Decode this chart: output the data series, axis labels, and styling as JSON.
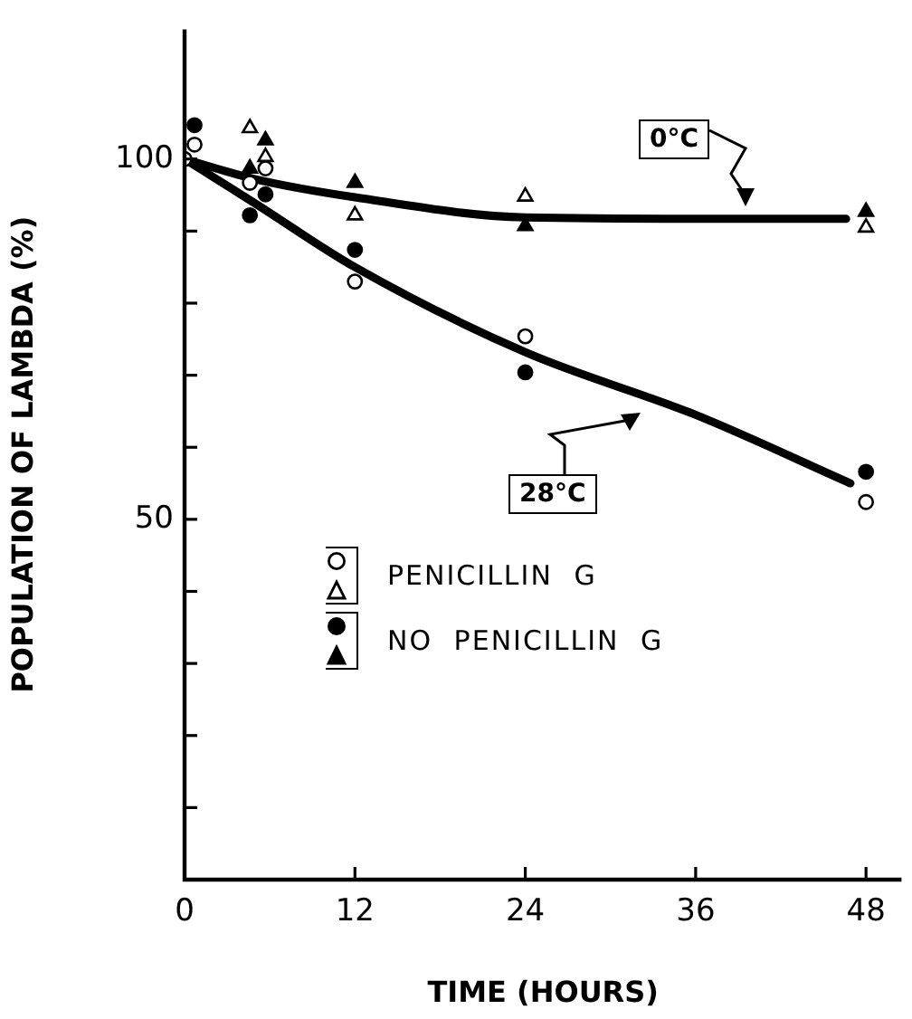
{
  "chart_data": {
    "type": "scatter",
    "xlabel": "TIME (HOURS)",
    "ylabel": "POPULATION OF LAMBDA (%)",
    "xlim": [
      0,
      50.5
    ],
    "ylim": [
      0,
      118
    ],
    "xticks": [
      0,
      12,
      24,
      36,
      48
    ],
    "yticks": [
      {
        "value": 0,
        "label": null
      },
      {
        "value": 10,
        "label": null
      },
      {
        "value": 20,
        "label": null
      },
      {
        "value": 30,
        "label": null
      },
      {
        "value": 40,
        "label": null
      },
      50,
      {
        "value": 60,
        "label": null
      },
      {
        "value": 70,
        "label": null
      },
      {
        "value": 80,
        "label": null
      },
      {
        "value": 90,
        "label": null
      },
      100
    ],
    "grid": false,
    "legend": "bottom",
    "line_style": "solid",
    "series": [
      {
        "name": "PENICILLIN G",
        "marker": "circle-open",
        "color": "#000000",
        "x": [
          0,
          0.7,
          4.6,
          5.7,
          12,
          24,
          48
        ],
        "values": [
          100,
          102,
          96.7,
          98.7,
          83,
          75.4,
          52.4
        ]
      },
      {
        "marker": "triangle-open",
        "color": "#000000",
        "x": [
          4.6,
          5.7,
          12,
          24,
          48
        ],
        "values": [
          104.3,
          100.3,
          92.2,
          94.8,
          90.5
        ]
      },
      {
        "name": "NO PENICILLIN G",
        "marker": "circle",
        "color": "#000000",
        "x": [
          0.7,
          4.6,
          5.7,
          12,
          24,
          48
        ],
        "values": [
          104.7,
          92.2,
          95.1,
          87.4,
          70.4,
          56.6
        ]
      },
      {
        "marker": "triangle",
        "color": "#000000",
        "x": [
          4.6,
          5.7,
          12,
          24,
          48
        ],
        "values": [
          98.7,
          102.6,
          96.7,
          90.7,
          92.7
        ]
      },
      {
        "type": "line",
        "marker": "none",
        "color": "#000000",
        "x": [
          0,
          5,
          12,
          24,
          39,
          46.6
        ],
        "values": [
          100,
          97.2,
          94.7,
          91.9,
          91.7,
          91.7
        ]
      },
      {
        "type": "line",
        "marker": "none",
        "color": "#000000",
        "x": [
          0,
          5,
          12,
          24,
          36,
          46.9
        ],
        "values": [
          100,
          93.8,
          85,
          73.2,
          64.5,
          55
        ]
      }
    ],
    "annotations": [
      "0°C",
      "28°C"
    ]
  }
}
